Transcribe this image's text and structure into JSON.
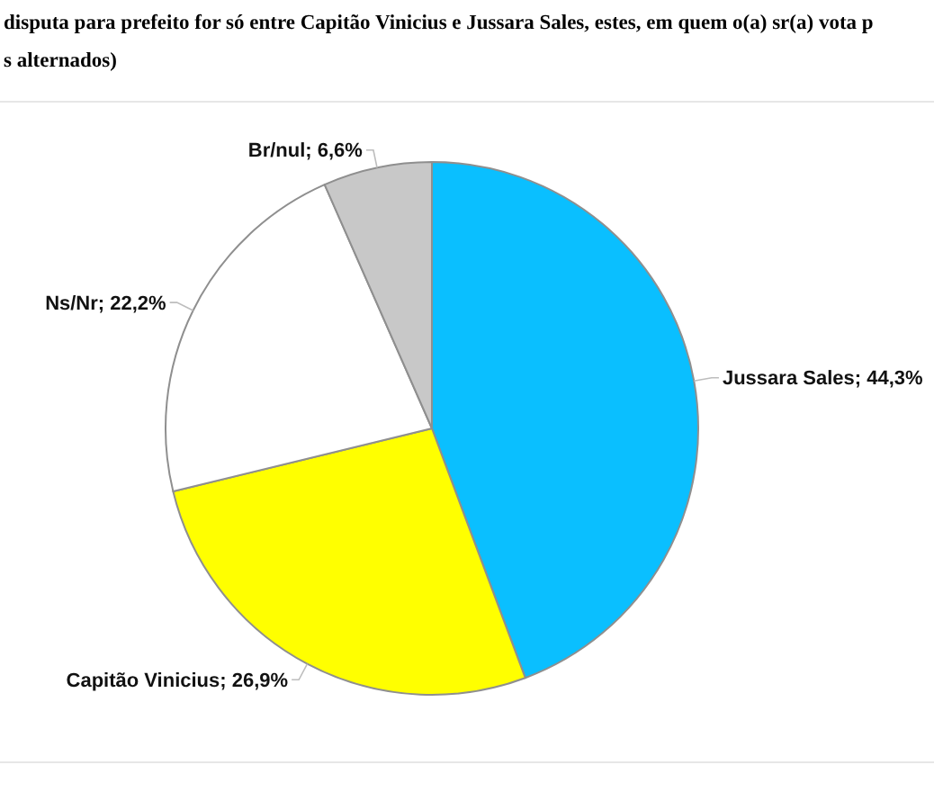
{
  "chart_data": {
    "type": "pie",
    "title": "disputa para prefeito for só entre Capitão Vinicius e Jussara Sales, estes, em quem o(a) sr(a) vota p",
    "subtitle": "s alternados)",
    "categories": [
      "Jussara Sales",
      "Capitão Vinicius",
      "Ns/Nr",
      "Br/nul"
    ],
    "values": [
      44.3,
      26.9,
      22.2,
      6.6
    ],
    "colors": [
      "#0abfff",
      "#ffff00",
      "#ffffff",
      "#c8c8c8"
    ],
    "value_labels": [
      "44,3%",
      "26,9%",
      "22,2%",
      "6,6%"
    ]
  }
}
